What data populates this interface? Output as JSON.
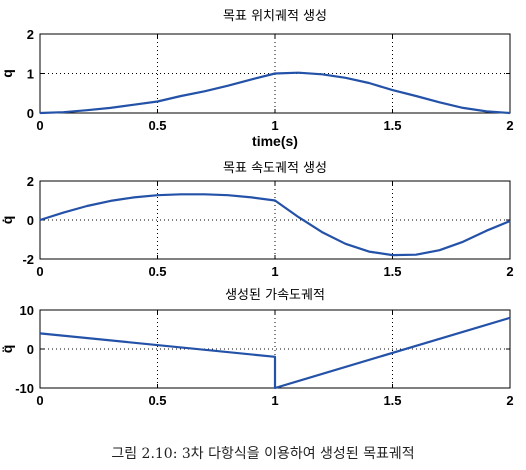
{
  "caption": "그림 2.10: 3차 다항식을 이용하여 생성된 목표궤적",
  "chart_data": [
    {
      "type": "line",
      "title": "목표 위치궤적 생성",
      "xlabel": "time(s)",
      "ylabel": "q",
      "xlim": [
        0,
        2
      ],
      "ylim": [
        0,
        2
      ],
      "xticks": [
        0,
        0.5,
        1,
        1.5,
        2
      ],
      "yticks": [
        0,
        1,
        2
      ],
      "grid": "dotted",
      "color": "#2452a8",
      "series": [
        {
          "x": [
            0,
            0.1,
            0.2,
            0.3,
            0.4,
            0.5,
            0.6,
            0.7,
            0.8,
            0.9,
            1.0,
            1.1,
            1.2,
            1.3,
            1.4,
            1.5,
            1.6,
            1.7,
            1.8,
            1.9,
            2.0
          ],
          "values": [
            0,
            0.02,
            0.07,
            0.13,
            0.21,
            0.29,
            0.43,
            0.55,
            0.69,
            0.85,
            1.0,
            1.02,
            0.98,
            0.89,
            0.76,
            0.58,
            0.43,
            0.27,
            0.13,
            0.04,
            0
          ]
        }
      ]
    },
    {
      "type": "line",
      "title": "목표 속도궤적 생성",
      "xlabel": "",
      "ylabel": "q̇",
      "xlim": [
        0,
        2
      ],
      "ylim": [
        -2,
        2
      ],
      "xticks": [
        0,
        0.5,
        1,
        1.5,
        2
      ],
      "yticks": [
        -2,
        0,
        2
      ],
      "grid": "dotted",
      "color": "#2452a8",
      "series": [
        {
          "x": [
            0,
            0.1,
            0.2,
            0.3,
            0.4,
            0.5,
            0.6,
            0.7,
            0.8,
            0.9,
            1.0,
            1.1,
            1.2,
            1.3,
            1.4,
            1.5,
            1.6,
            1.7,
            1.8,
            1.9,
            2.0
          ],
          "values": [
            0,
            0.38,
            0.72,
            0.98,
            1.16,
            1.27,
            1.32,
            1.32,
            1.27,
            1.16,
            1.0,
            0.15,
            -0.62,
            -1.22,
            -1.62,
            -1.8,
            -1.78,
            -1.55,
            -1.12,
            -0.55,
            -0.05
          ]
        }
      ]
    },
    {
      "type": "line",
      "title": "생성된 가속도궤적",
      "xlabel": "",
      "ylabel": "q̈",
      "xlim": [
        0,
        2
      ],
      "ylim": [
        -10,
        10
      ],
      "xticks": [
        0,
        0.5,
        1,
        1.5,
        2
      ],
      "yticks": [
        -10,
        0,
        10
      ],
      "grid": "dotted",
      "color": "#2452a8",
      "series": [
        {
          "x": [
            0,
            1,
            1,
            2
          ],
          "values": [
            4,
            -2,
            -10,
            8
          ]
        }
      ]
    }
  ]
}
